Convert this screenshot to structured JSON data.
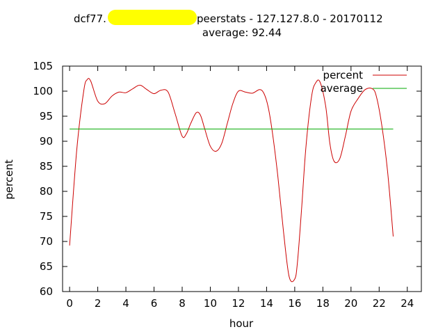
{
  "chart_data": {
    "type": "line",
    "title_line1_prefix": "dcf77.",
    "title_line1_suffix": " peerstats - 127.127.8.0 - 20170112",
    "title_line2": "average: 92.44",
    "xlabel": "hour",
    "ylabel": "percent",
    "xlim": [
      -0.5,
      25
    ],
    "ylim": [
      60,
      105
    ],
    "xticks": [
      0,
      2,
      4,
      6,
      8,
      10,
      12,
      14,
      16,
      18,
      20,
      22,
      24
    ],
    "yticks": [
      60,
      65,
      70,
      75,
      80,
      85,
      90,
      95,
      100,
      105
    ],
    "legend_position": "top-right",
    "grid": false,
    "series": [
      {
        "name": "percent",
        "color": "#cc0000",
        "x": [
          0,
          0.5,
          1,
          1.25,
          1.5,
          2,
          2.5,
          3,
          3.5,
          4,
          4.5,
          5,
          5.5,
          6,
          6.5,
          7,
          7.5,
          8,
          8.3,
          8.6,
          9,
          9.3,
          9.6,
          10,
          10.4,
          10.8,
          11.2,
          11.6,
          12,
          12.5,
          13,
          13.5,
          13.8,
          14.1,
          14.4,
          14.8,
          15.2,
          15.6,
          16,
          16.2,
          16.5,
          16.8,
          17.2,
          17.5,
          17.8,
          18.2,
          18.5,
          18.8,
          19.2,
          19.6,
          20,
          20.5,
          21,
          21.5,
          21.8,
          22.2,
          22.6,
          23
        ],
        "y": [
          69.2,
          88,
          100,
          102.3,
          102,
          98,
          97.5,
          99,
          99.8,
          99.7,
          100.5,
          101.2,
          100.3,
          99.5,
          100.2,
          99.8,
          95.5,
          91,
          91.5,
          93.5,
          95.7,
          95.2,
          92.5,
          89,
          88,
          89.5,
          93.5,
          97.5,
          100,
          99.8,
          99.6,
          100.3,
          99.6,
          97,
          92,
          83,
          72,
          63,
          62.5,
          66,
          77,
          89,
          99,
          101.7,
          101.8,
          97,
          89.5,
          86,
          86.5,
          91,
          96,
          98.5,
          100.3,
          100.5,
          99,
          93,
          84,
          71
        ]
      },
      {
        "name": "average",
        "color": "#00aa00",
        "x": [
          0,
          23
        ],
        "y": [
          92.44,
          92.44
        ]
      }
    ]
  }
}
